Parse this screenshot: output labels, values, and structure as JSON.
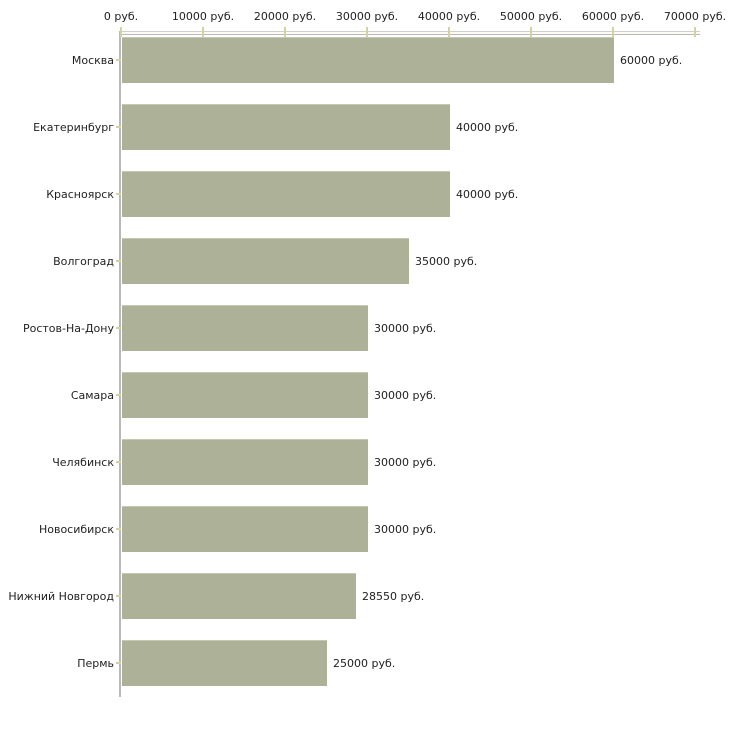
{
  "chart_data": {
    "type": "bar",
    "orientation": "horizontal",
    "title": "",
    "xlabel": "",
    "ylabel": "",
    "unit": "руб.",
    "categories": [
      "Москва",
      "Екатеринбург",
      "Красноярск",
      "Волгоград",
      "Ростов-На-Дону",
      "Самара",
      "Челябинск",
      "Новосибирск",
      "Нижний Новгород",
      "Пермь"
    ],
    "values": [
      60000,
      40000,
      40000,
      35000,
      30000,
      30000,
      30000,
      30000,
      28550,
      25000
    ],
    "value_labels": [
      "60000 руб.",
      "40000 руб.",
      "40000 руб.",
      "35000 руб.",
      "30000 руб.",
      "30000 руб.",
      "30000 руб.",
      "30000 руб.",
      "28550 руб.",
      "25000 руб."
    ],
    "x_tick_values": [
      0,
      10000,
      20000,
      30000,
      40000,
      50000,
      60000,
      70000
    ],
    "x_tick_labels": [
      "0 руб.",
      "10000 руб.",
      "20000 руб.",
      "30000 руб.",
      "40000 руб.",
      "50000 руб.",
      "60000 руб.",
      "70000 руб."
    ],
    "xlim": [
      0,
      70500
    ],
    "grid": false,
    "legend": false,
    "colors": {
      "bar_fill": "#acb197",
      "bar_highlight": "#c4c9b3",
      "tick_mark": "#d2d2a2",
      "axis_line": "#b9b9b9",
      "text": "#1f1f1f",
      "background": "#ffffff"
    }
  }
}
